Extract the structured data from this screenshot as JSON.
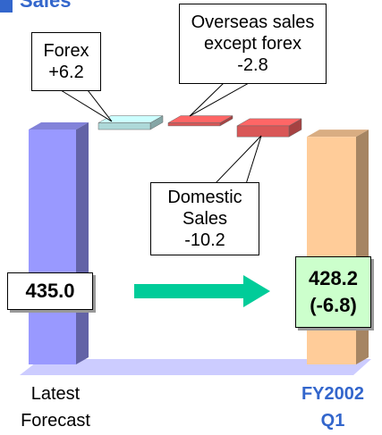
{
  "chart_data": {
    "type": "waterfall",
    "title": "Sales",
    "categories": [
      "Latest Forecast",
      "Forex",
      "Overseas sales except forex",
      "Domestic Sales",
      "FY2002 Q1"
    ],
    "values": [
      435.0,
      6.2,
      -2.8,
      -10.2,
      428.2
    ],
    "value_labels": [
      "435.0",
      "+6.2",
      "-2.8",
      "-10.2",
      "428.2"
    ],
    "annotation": "(-6.8)",
    "colors": [
      "#9999ff",
      "#ccffff",
      "#ff6666",
      "#ff6666",
      "#ffcc99"
    ]
  }
}
